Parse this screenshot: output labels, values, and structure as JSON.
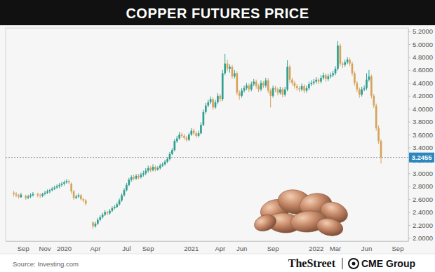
{
  "chart_data": {
    "type": "candlestick",
    "title": "COPPER FUTURES PRICE",
    "source": "Source: Investing.com",
    "credits": [
      "TheStreet",
      "CME Group"
    ],
    "grid": false,
    "categories": [
      null,
      null,
      null,
      null,
      null,
      null,
      null,
      "Sep",
      null,
      null,
      null,
      null,
      null,
      null,
      null,
      null,
      "Nov",
      null,
      null,
      null,
      null,
      null,
      null,
      null,
      "2020",
      null,
      null,
      null,
      null,
      null,
      null,
      null,
      null,
      null,
      null,
      null,
      null,
      "Apr",
      null,
      null,
      null,
      null,
      null,
      null,
      null,
      null,
      null,
      null,
      null,
      null,
      "Jul",
      null,
      null,
      null,
      null,
      null,
      null,
      null,
      null,
      "Sep",
      null,
      null,
      null,
      null,
      null,
      null,
      null,
      null,
      null,
      null,
      null,
      null,
      null,
      null,
      null,
      null,
      null,
      "2021",
      null,
      null,
      null,
      null,
      null,
      null,
      null,
      null,
      null,
      null,
      null,
      "Apr",
      null,
      null,
      null,
      null,
      null,
      null,
      null,
      null,
      "Jun",
      null,
      null,
      null,
      null,
      null,
      null,
      null,
      null,
      null,
      null,
      null,
      null,
      "Sep",
      null,
      null,
      null,
      null,
      null,
      null,
      null,
      null,
      null,
      null,
      null,
      null,
      null,
      null,
      null,
      null,
      null,
      "2022",
      null,
      null,
      null,
      null,
      null,
      null,
      null,
      "Mar",
      null,
      null,
      null,
      null,
      null,
      null,
      null,
      null,
      null,
      null,
      null,
      null,
      "Jun",
      null,
      null,
      null,
      null,
      null,
      null,
      null,
      null,
      null,
      null,
      null,
      null,
      "Sep",
      null,
      null,
      null,
      null
    ],
    "open": [
      null,
      null,
      null,
      2.7,
      2.68,
      2.66,
      2.63,
      null,
      2.65,
      2.62,
      2.64,
      2.66,
      null,
      2.68,
      2.66,
      2.65,
      2.68,
      2.7,
      2.72,
      2.74,
      2.76,
      2.78,
      2.8,
      2.82,
      2.84,
      2.86,
      2.88,
      2.84,
      2.72,
      2.62,
      2.64,
      2.66,
      2.6,
      2.58,
      null,
      null,
      2.24,
      2.18,
      2.22,
      2.28,
      2.32,
      2.36,
      2.4,
      2.38,
      2.42,
      2.46,
      2.48,
      2.52,
      2.58,
      2.66,
      2.74,
      2.82,
      2.9,
      2.94,
      2.92,
      2.96,
      2.94,
      2.98,
      3.0,
      3.04,
      3.08,
      3.05,
      3.1,
      3.06,
      3.08,
      3.12,
      3.14,
      3.18,
      3.22,
      3.3,
      3.36,
      3.5,
      3.54,
      3.6,
      3.58,
      3.55,
      3.52,
      3.6,
      3.66,
      3.62,
      3.58,
      3.62,
      3.75,
      3.95,
      4.05,
      4.1,
      4.15,
      4.02,
      4.1,
      4.2,
      4.15,
      4.55,
      4.7,
      4.62,
      4.65,
      4.5,
      4.55,
      4.25,
      4.2,
      4.28,
      4.32,
      4.36,
      4.3,
      4.38,
      4.42,
      4.35,
      4.3,
      4.4,
      4.36,
      4.44,
      4.28,
      4.2,
      4.32,
      4.3,
      4.25,
      4.3,
      4.22,
      4.3,
      4.65,
      4.45,
      4.4,
      4.35,
      4.32,
      4.3,
      4.35,
      4.28,
      4.32,
      4.38,
      4.4,
      4.42,
      4.45,
      4.42,
      4.48,
      4.52,
      4.46,
      4.5,
      4.52,
      4.55,
      4.62,
      4.98,
      4.7,
      4.68,
      4.72,
      4.76,
      4.7,
      4.55,
      4.4,
      4.3,
      4.22,
      4.3,
      4.32,
      4.45,
      4.5,
      4.2,
      4.05,
      3.7,
      3.5,
      null,
      null,
      null,
      null,
      null,
      null,
      null,
      null,
      null,
      null,
      null
    ],
    "high": [
      null,
      null,
      null,
      2.73,
      2.71,
      2.68,
      2.7,
      null,
      2.67,
      2.67,
      2.69,
      2.71,
      null,
      2.7,
      2.69,
      2.7,
      2.73,
      2.75,
      2.76,
      2.79,
      2.81,
      2.83,
      2.85,
      2.87,
      2.89,
      2.91,
      2.9,
      2.86,
      2.74,
      2.67,
      2.69,
      2.68,
      2.62,
      2.6,
      null,
      null,
      2.26,
      2.25,
      2.31,
      2.35,
      2.39,
      2.43,
      2.42,
      2.45,
      2.49,
      2.51,
      2.55,
      2.61,
      2.69,
      2.77,
      2.85,
      2.93,
      2.97,
      2.98,
      2.99,
      2.99,
      3.01,
      3.04,
      3.08,
      3.12,
      3.11,
      3.14,
      3.12,
      3.11,
      3.15,
      3.17,
      3.21,
      3.25,
      3.33,
      3.39,
      3.53,
      3.58,
      3.64,
      3.63,
      3.61,
      3.58,
      3.63,
      3.7,
      3.69,
      3.65,
      3.66,
      3.79,
      3.99,
      4.09,
      4.14,
      4.19,
      4.18,
      4.14,
      4.24,
      4.23,
      4.6,
      4.85,
      4.76,
      4.69,
      4.68,
      4.6,
      4.58,
      4.29,
      4.32,
      4.36,
      4.4,
      4.39,
      4.42,
      4.46,
      4.45,
      4.38,
      4.44,
      4.43,
      4.48,
      4.47,
      4.31,
      4.36,
      4.35,
      4.33,
      4.34,
      4.33,
      4.34,
      4.75,
      4.68,
      4.48,
      4.43,
      4.38,
      4.35,
      4.39,
      4.38,
      4.36,
      4.42,
      4.44,
      4.46,
      4.49,
      4.48,
      4.52,
      4.56,
      4.55,
      4.54,
      4.56,
      4.59,
      4.66,
      5.05,
      5.01,
      4.73,
      4.76,
      4.8,
      4.79,
      4.73,
      4.58,
      4.43,
      4.33,
      4.34,
      4.36,
      4.55,
      4.6,
      4.53,
      4.23,
      4.08,
      3.74,
      3.53,
      null,
      null,
      null,
      null,
      null,
      null,
      null,
      null,
      null,
      null,
      null
    ],
    "low": [
      null,
      null,
      null,
      2.64,
      2.63,
      2.61,
      2.62,
      null,
      2.59,
      2.6,
      2.62,
      2.64,
      null,
      2.63,
      2.62,
      2.63,
      2.66,
      2.68,
      2.69,
      2.72,
      2.74,
      2.76,
      2.77,
      2.79,
      2.81,
      2.84,
      2.83,
      2.68,
      2.59,
      2.6,
      2.62,
      2.58,
      2.55,
      2.5,
      null,
      null,
      2.14,
      2.16,
      2.2,
      2.26,
      2.3,
      2.34,
      2.35,
      2.36,
      2.4,
      2.44,
      2.46,
      2.5,
      2.56,
      2.64,
      2.72,
      2.8,
      2.87,
      2.89,
      2.9,
      2.91,
      2.92,
      2.95,
      2.97,
      3.01,
      3.02,
      3.03,
      3.03,
      3.04,
      3.06,
      3.1,
      3.12,
      3.16,
      3.2,
      3.28,
      3.34,
      3.47,
      3.52,
      3.55,
      3.52,
      3.49,
      3.5,
      3.58,
      3.59,
      3.55,
      3.56,
      3.6,
      3.73,
      3.92,
      4.02,
      4.07,
      3.98,
      4.0,
      4.07,
      4.11,
      4.12,
      4.52,
      4.58,
      4.56,
      4.46,
      4.47,
      4.21,
      4.14,
      4.17,
      4.25,
      4.29,
      4.26,
      4.27,
      4.35,
      4.31,
      4.26,
      4.27,
      4.32,
      4.33,
      4.24,
      4.02,
      4.17,
      4.26,
      4.21,
      4.22,
      4.18,
      4.19,
      4.27,
      4.4,
      4.36,
      4.31,
      4.28,
      4.26,
      4.27,
      4.24,
      4.25,
      4.29,
      4.35,
      4.37,
      4.39,
      4.38,
      4.39,
      4.45,
      4.42,
      4.43,
      4.47,
      4.49,
      4.52,
      4.59,
      4.66,
      4.63,
      4.65,
      4.69,
      4.66,
      4.51,
      4.36,
      4.26,
      4.17,
      4.19,
      4.27,
      4.29,
      4.42,
      4.16,
      4.01,
      3.66,
      3.46,
      3.15,
      null,
      null,
      null,
      null,
      null,
      null,
      null,
      null,
      null,
      null,
      null
    ],
    "close": [
      null,
      null,
      null,
      2.68,
      2.66,
      2.64,
      2.67,
      null,
      2.62,
      2.64,
      2.66,
      2.68,
      null,
      2.66,
      2.65,
      2.68,
      2.7,
      2.72,
      2.74,
      2.76,
      2.78,
      2.8,
      2.82,
      2.84,
      2.86,
      2.88,
      2.86,
      2.72,
      2.62,
      2.64,
      2.66,
      2.6,
      2.58,
      2.53,
      null,
      null,
      2.18,
      2.22,
      2.28,
      2.32,
      2.36,
      2.4,
      2.38,
      2.42,
      2.46,
      2.48,
      2.52,
      2.58,
      2.66,
      2.74,
      2.82,
      2.9,
      2.94,
      2.92,
      2.96,
      2.94,
      2.98,
      3.0,
      3.04,
      3.08,
      3.05,
      3.1,
      3.06,
      3.08,
      3.12,
      3.14,
      3.18,
      3.22,
      3.3,
      3.36,
      3.5,
      3.54,
      3.6,
      3.58,
      3.55,
      3.52,
      3.6,
      3.66,
      3.62,
      3.58,
      3.62,
      3.75,
      3.95,
      4.05,
      4.1,
      4.15,
      4.02,
      4.1,
      4.2,
      4.15,
      4.55,
      4.7,
      4.62,
      4.65,
      4.5,
      4.55,
      4.25,
      4.2,
      4.28,
      4.32,
      4.36,
      4.3,
      4.38,
      4.42,
      4.35,
      4.3,
      4.4,
      4.36,
      4.44,
      4.28,
      4.2,
      4.32,
      4.3,
      4.25,
      4.3,
      4.22,
      4.3,
      4.65,
      4.45,
      4.4,
      4.35,
      4.32,
      4.3,
      4.35,
      4.28,
      4.32,
      4.38,
      4.4,
      4.42,
      4.45,
      4.42,
      4.48,
      4.52,
      4.46,
      4.5,
      4.52,
      4.55,
      4.62,
      4.98,
      4.7,
      4.68,
      4.72,
      4.76,
      4.7,
      4.55,
      4.4,
      4.3,
      4.22,
      4.3,
      4.32,
      4.45,
      4.5,
      4.2,
      4.05,
      3.7,
      3.5,
      3.2455,
      null,
      null,
      null,
      null,
      null,
      null,
      null,
      null,
      null,
      null,
      null
    ],
    "ylim": [
      1.95,
      5.25
    ],
    "yticks": [
      {
        "value": 2.0,
        "label": "2.0000"
      },
      {
        "value": 2.2,
        "label": "2.2000"
      },
      {
        "value": 2.4,
        "label": "2.4000"
      },
      {
        "value": 2.6,
        "label": "2.6000"
      },
      {
        "value": 2.8,
        "label": "2.8000"
      },
      {
        "value": 3.0,
        "label": "3.0000"
      },
      {
        "value": 3.2,
        "label": "3.2000"
      },
      {
        "value": 3.4,
        "label": "3.4000"
      },
      {
        "value": 3.6,
        "label": "3.6000"
      },
      {
        "value": 3.8,
        "label": "3.8000"
      },
      {
        "value": 4.0,
        "label": "4.0000"
      },
      {
        "value": 4.2,
        "label": "4.2000"
      },
      {
        "value": 4.4,
        "label": "4.4000"
      },
      {
        "value": 4.6,
        "label": "4.6000"
      },
      {
        "value": 4.8,
        "label": "4.8000"
      },
      {
        "value": 5.0,
        "label": "5.0000"
      },
      {
        "value": 5.2,
        "label": "5.2000"
      }
    ]
  }
}
